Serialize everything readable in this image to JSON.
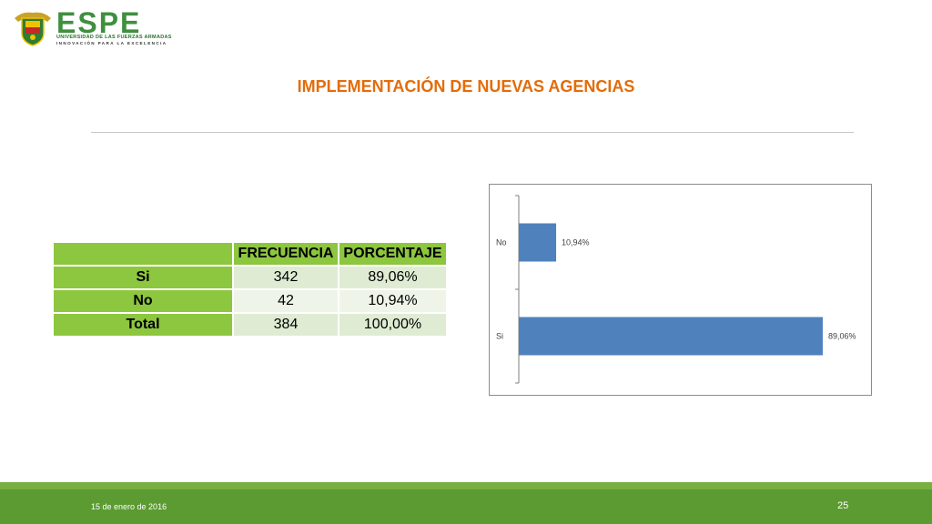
{
  "logo": {
    "brand": "ESPE",
    "university": "UNIVERSIDAD DE LAS FUERZAS ARMADAS",
    "motto": "INNOVACIÓN PARA LA EXCELENCIA",
    "crest_colors": [
      "#2e7d32",
      "#f2c200",
      "#c62828"
    ]
  },
  "slide": {
    "title": "IMPLEMENTACIÓN DE NUEVAS AGENCIAS",
    "title_color": "#e36c0a"
  },
  "table": {
    "headers": [
      "",
      "FRECUENCIA",
      "PORCENTAJE"
    ],
    "rows": [
      {
        "label": "Si",
        "frecuencia": "342",
        "porcentaje": "89,06%"
      },
      {
        "label": "No",
        "frecuencia": "42",
        "porcentaje": "10,94%"
      },
      {
        "label": "Total",
        "frecuencia": "384",
        "porcentaje": "100,00%"
      }
    ]
  },
  "chart_data": {
    "type": "bar",
    "orientation": "horizontal",
    "categories": [
      "No",
      "Si"
    ],
    "values": [
      10.94,
      89.06
    ],
    "data_labels": [
      "10,94%",
      "89,06%"
    ],
    "xlim": [
      0,
      100
    ],
    "bar_color": "#4f81bd",
    "grid": false,
    "legend": "none"
  },
  "footer": {
    "date": "15 de enero de 2016",
    "page": "25"
  }
}
